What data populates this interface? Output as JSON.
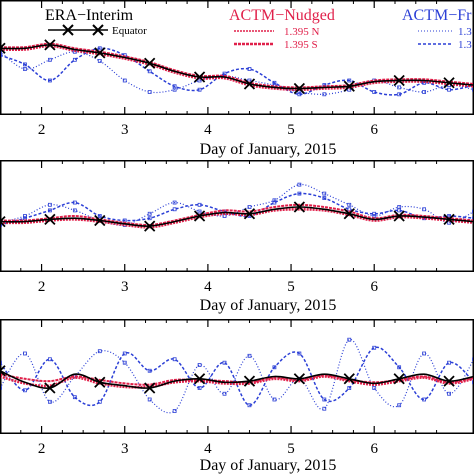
{
  "legend": {
    "era_title": "ERA−Interim",
    "era_marker": "Equator",
    "nudged_title": "ACTM−Nudged",
    "nudged_n": "1.395 N",
    "nudged_s": "1.395 S",
    "free_title": "ACTM−Fr",
    "free_n": "1.3",
    "free_s": "1.3"
  },
  "colors": {
    "era": "#000000",
    "nudged": "#e0204a",
    "free": "#2b3fd6"
  },
  "chart_data": [
    {
      "type": "line",
      "xlabel": "Day of January, 2015",
      "xlim": [
        1.5,
        7.2
      ],
      "ylim": [
        0,
        1
      ],
      "xticks": [
        "2",
        "3",
        "4",
        "5",
        "6"
      ],
      "series": [
        {
          "name": "Equator",
          "x": [
            1.5,
            1.8,
            2.1,
            2.4,
            2.7,
            3.0,
            3.3,
            3.6,
            3.9,
            4.2,
            4.5,
            4.8,
            5.1,
            5.4,
            5.7,
            6.0,
            6.3,
            6.6,
            6.9,
            7.2
          ],
          "y": [
            0.58,
            0.58,
            0.61,
            0.57,
            0.54,
            0.5,
            0.45,
            0.38,
            0.33,
            0.33,
            0.27,
            0.24,
            0.23,
            0.24,
            0.25,
            0.29,
            0.3,
            0.3,
            0.28,
            0.26
          ]
        },
        {
          "name": "1.395 N",
          "x": [
            1.5,
            1.8,
            2.1,
            2.4,
            2.7,
            3.0,
            3.3,
            3.6,
            3.9,
            4.2,
            4.5,
            4.8,
            5.1,
            5.4,
            5.7,
            6.0,
            6.3,
            6.6,
            6.9,
            7.2
          ],
          "y": [
            0.59,
            0.59,
            0.62,
            0.58,
            0.55,
            0.51,
            0.46,
            0.39,
            0.34,
            0.34,
            0.28,
            0.25,
            0.24,
            0.25,
            0.26,
            0.3,
            0.31,
            0.31,
            0.29,
            0.27
          ]
        },
        {
          "name": "1.395 S",
          "x": [
            1.5,
            1.8,
            2.1,
            2.4,
            2.7,
            3.0,
            3.3,
            3.6,
            3.9,
            4.2,
            4.5,
            4.8,
            5.1,
            5.4,
            5.7,
            6.0,
            6.3,
            6.6,
            6.9,
            7.2
          ],
          "y": [
            0.57,
            0.57,
            0.6,
            0.56,
            0.53,
            0.49,
            0.44,
            0.37,
            0.32,
            0.32,
            0.26,
            0.23,
            0.22,
            0.23,
            0.24,
            0.28,
            0.29,
            0.29,
            0.27,
            0.25
          ]
        },
        {
          "name": "1.3",
          "x": [
            1.5,
            1.8,
            2.1,
            2.4,
            2.7,
            3.0,
            3.3,
            3.6,
            3.9,
            4.2,
            4.5,
            4.8,
            5.1,
            5.4,
            5.7,
            6.0,
            6.3,
            6.6,
            6.9,
            7.2
          ],
          "y": [
            0.55,
            0.4,
            0.48,
            0.55,
            0.47,
            0.3,
            0.2,
            0.22,
            0.3,
            0.34,
            0.3,
            0.26,
            0.2,
            0.18,
            0.22,
            0.3,
            0.24,
            0.2,
            0.26,
            0.22
          ]
        },
        {
          "name": "1.3",
          "x": [
            1.5,
            1.8,
            2.1,
            2.4,
            2.7,
            3.0,
            3.3,
            3.6,
            3.9,
            4.2,
            4.5,
            4.8,
            5.1,
            5.4,
            5.7,
            6.0,
            6.3,
            6.6,
            6.9,
            7.2
          ],
          "y": [
            0.52,
            0.44,
            0.3,
            0.48,
            0.58,
            0.52,
            0.38,
            0.25,
            0.22,
            0.36,
            0.4,
            0.28,
            0.18,
            0.26,
            0.3,
            0.2,
            0.18,
            0.28,
            0.22,
            0.26
          ]
        }
      ]
    },
    {
      "type": "line",
      "xlabel": "Day of January, 2015",
      "xlim": [
        1.5,
        7.2
      ],
      "ylim": [
        0,
        1
      ],
      "xticks": [
        "2",
        "3",
        "4",
        "5",
        "6"
      ],
      "series": [
        {
          "name": "Equator",
          "x": [
            1.5,
            1.8,
            2.1,
            2.4,
            2.7,
            3.0,
            3.3,
            3.6,
            3.9,
            4.2,
            4.5,
            4.8,
            5.1,
            5.4,
            5.7,
            6.0,
            6.3,
            6.6,
            6.9,
            7.2
          ],
          "y": [
            0.45,
            0.45,
            0.47,
            0.48,
            0.46,
            0.43,
            0.41,
            0.45,
            0.5,
            0.53,
            0.52,
            0.56,
            0.58,
            0.56,
            0.52,
            0.47,
            0.5,
            0.49,
            0.47,
            0.45
          ]
        },
        {
          "name": "1.395 N",
          "x": [
            1.5,
            1.8,
            2.1,
            2.4,
            2.7,
            3.0,
            3.3,
            3.6,
            3.9,
            4.2,
            4.5,
            4.8,
            5.1,
            5.4,
            5.7,
            6.0,
            6.3,
            6.6,
            6.9,
            7.2
          ],
          "y": [
            0.46,
            0.46,
            0.48,
            0.5,
            0.47,
            0.44,
            0.42,
            0.46,
            0.51,
            0.55,
            0.54,
            0.58,
            0.6,
            0.58,
            0.54,
            0.48,
            0.51,
            0.5,
            0.48,
            0.46
          ]
        },
        {
          "name": "1.395 S",
          "x": [
            1.5,
            1.8,
            2.1,
            2.4,
            2.7,
            3.0,
            3.3,
            3.6,
            3.9,
            4.2,
            4.5,
            4.8,
            5.1,
            5.4,
            5.7,
            6.0,
            6.3,
            6.6,
            6.9,
            7.2
          ],
          "y": [
            0.44,
            0.44,
            0.46,
            0.47,
            0.45,
            0.42,
            0.4,
            0.44,
            0.49,
            0.52,
            0.51,
            0.55,
            0.56,
            0.55,
            0.51,
            0.46,
            0.49,
            0.48,
            0.46,
            0.44
          ]
        },
        {
          "name": "1.3",
          "x": [
            1.5,
            1.8,
            2.1,
            2.4,
            2.7,
            3.0,
            3.3,
            3.6,
            3.9,
            4.2,
            4.5,
            4.8,
            5.1,
            5.4,
            5.7,
            6.0,
            6.3,
            6.6,
            6.9,
            7.2
          ],
          "y": [
            0.44,
            0.5,
            0.6,
            0.55,
            0.46,
            0.42,
            0.52,
            0.62,
            0.54,
            0.5,
            0.58,
            0.64,
            0.78,
            0.7,
            0.6,
            0.5,
            0.58,
            0.56,
            0.44,
            0.54
          ]
        },
        {
          "name": "1.3",
          "x": [
            1.5,
            1.8,
            2.1,
            2.4,
            2.7,
            3.0,
            3.3,
            3.6,
            3.9,
            4.2,
            4.5,
            4.8,
            5.1,
            5.4,
            5.7,
            6.0,
            6.3,
            6.6,
            6.9,
            7.2
          ],
          "y": [
            0.42,
            0.48,
            0.55,
            0.62,
            0.5,
            0.46,
            0.48,
            0.56,
            0.6,
            0.54,
            0.5,
            0.62,
            0.7,
            0.66,
            0.56,
            0.52,
            0.55,
            0.48,
            0.5,
            0.48
          ]
        }
      ]
    },
    {
      "type": "line",
      "xlabel": "Day of January, 2015",
      "xlim": [
        1.5,
        7.2
      ],
      "ylim": [
        0,
        1
      ],
      "xticks": [
        "2",
        "3",
        "4",
        "5",
        "6"
      ],
      "series": [
        {
          "name": "Equator",
          "x": [
            1.5,
            1.8,
            2.1,
            2.4,
            2.7,
            3.0,
            3.3,
            3.6,
            3.9,
            4.2,
            4.5,
            4.8,
            5.1,
            5.4,
            5.7,
            6.0,
            6.3,
            6.6,
            6.9,
            7.2
          ],
          "y": [
            0.55,
            0.45,
            0.4,
            0.52,
            0.45,
            0.42,
            0.4,
            0.46,
            0.48,
            0.45,
            0.46,
            0.5,
            0.48,
            0.52,
            0.48,
            0.44,
            0.48,
            0.52,
            0.46,
            0.5
          ]
        },
        {
          "name": "1.395 N",
          "x": [
            1.5,
            1.8,
            2.1,
            2.4,
            2.7,
            3.0,
            3.3,
            3.6,
            3.9,
            4.2,
            4.5,
            4.8,
            5.1,
            5.4,
            5.7,
            6.0,
            6.3,
            6.6,
            6.9,
            7.2
          ],
          "y": [
            0.52,
            0.48,
            0.46,
            0.5,
            0.47,
            0.44,
            0.43,
            0.47,
            0.47,
            0.46,
            0.45,
            0.49,
            0.47,
            0.51,
            0.47,
            0.45,
            0.47,
            0.5,
            0.45,
            0.49
          ]
        },
        {
          "name": "1.395 S",
          "x": [
            1.5,
            1.8,
            2.1,
            2.4,
            2.7,
            3.0,
            3.3,
            3.6,
            3.9,
            4.2,
            4.5,
            4.8,
            5.1,
            5.4,
            5.7,
            6.0,
            6.3,
            6.6,
            6.9,
            7.2
          ],
          "y": [
            0.5,
            0.44,
            0.42,
            0.49,
            0.44,
            0.41,
            0.41,
            0.45,
            0.46,
            0.44,
            0.44,
            0.48,
            0.46,
            0.5,
            0.46,
            0.43,
            0.46,
            0.49,
            0.44,
            0.48
          ]
        },
        {
          "name": "1.3",
          "x": [
            1.5,
            1.8,
            2.1,
            2.4,
            2.7,
            3.0,
            3.3,
            3.6,
            3.9,
            4.2,
            4.5,
            4.8,
            5.1,
            5.4,
            5.7,
            6.0,
            6.3,
            6.6,
            6.9,
            7.2
          ],
          "y": [
            0.4,
            0.7,
            0.28,
            0.5,
            0.72,
            0.62,
            0.3,
            0.2,
            0.6,
            0.35,
            0.68,
            0.3,
            0.48,
            0.22,
            0.82,
            0.4,
            0.25,
            0.7,
            0.35,
            0.65
          ]
        },
        {
          "name": "1.3",
          "x": [
            1.5,
            1.8,
            2.1,
            2.4,
            2.7,
            3.0,
            3.3,
            3.6,
            3.9,
            4.2,
            4.5,
            4.8,
            5.1,
            5.4,
            5.7,
            6.0,
            6.3,
            6.6,
            6.9,
            7.2
          ],
          "y": [
            0.62,
            0.38,
            0.65,
            0.32,
            0.28,
            0.7,
            0.55,
            0.65,
            0.4,
            0.62,
            0.25,
            0.58,
            0.7,
            0.3,
            0.4,
            0.75,
            0.58,
            0.3,
            0.62,
            0.45
          ]
        }
      ]
    }
  ]
}
